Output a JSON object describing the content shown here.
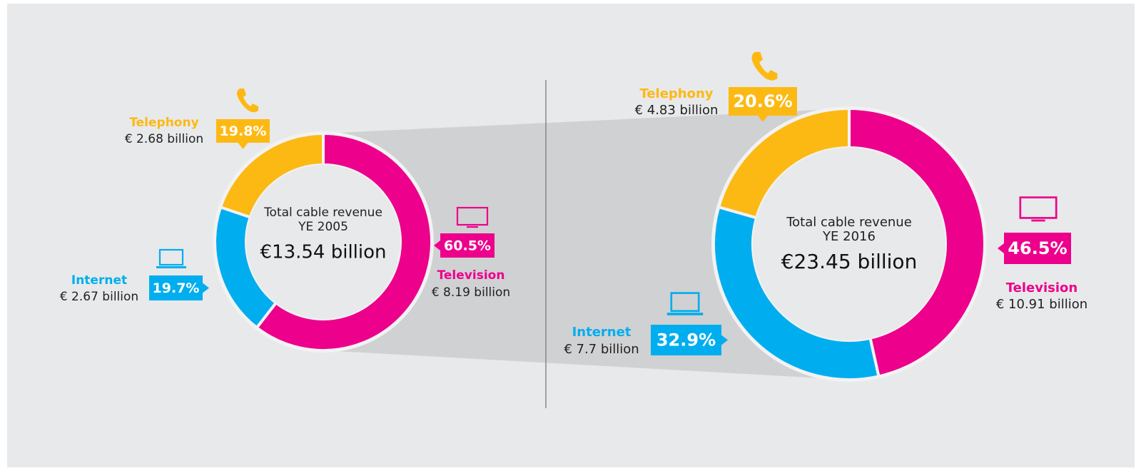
{
  "chart_data": [
    {
      "type": "pie",
      "center_label": [
        "Total cable revenue",
        "YE 2005"
      ],
      "total": "€13.54 billion",
      "categories": [
        "Television",
        "Internet",
        "Telephony"
      ],
      "values": [
        60.5,
        19.7,
        19.8
      ],
      "value_labels": [
        "60.5%",
        "19.7%",
        "19.8%"
      ],
      "amounts": [
        "€ 8.19 billion",
        "€ 2.67 billion",
        "€ 2.68 billion"
      ],
      "colors": [
        "#ec008c",
        "#00aeef",
        "#fdb913"
      ]
    },
    {
      "type": "pie",
      "center_label": [
        "Total cable revenue",
        "YE 2016"
      ],
      "total": "€23.45 billion",
      "categories": [
        "Television",
        "Internet",
        "Telephony"
      ],
      "values": [
        46.5,
        32.9,
        20.6
      ],
      "value_labels": [
        "46.5%",
        "32.9%",
        "20.6%"
      ],
      "amounts": [
        "€ 10.91 billion",
        "€ 7.7 billion",
        "€ 4.83 billion"
      ],
      "colors": [
        "#ec008c",
        "#00aeef",
        "#fdb913"
      ]
    }
  ]
}
